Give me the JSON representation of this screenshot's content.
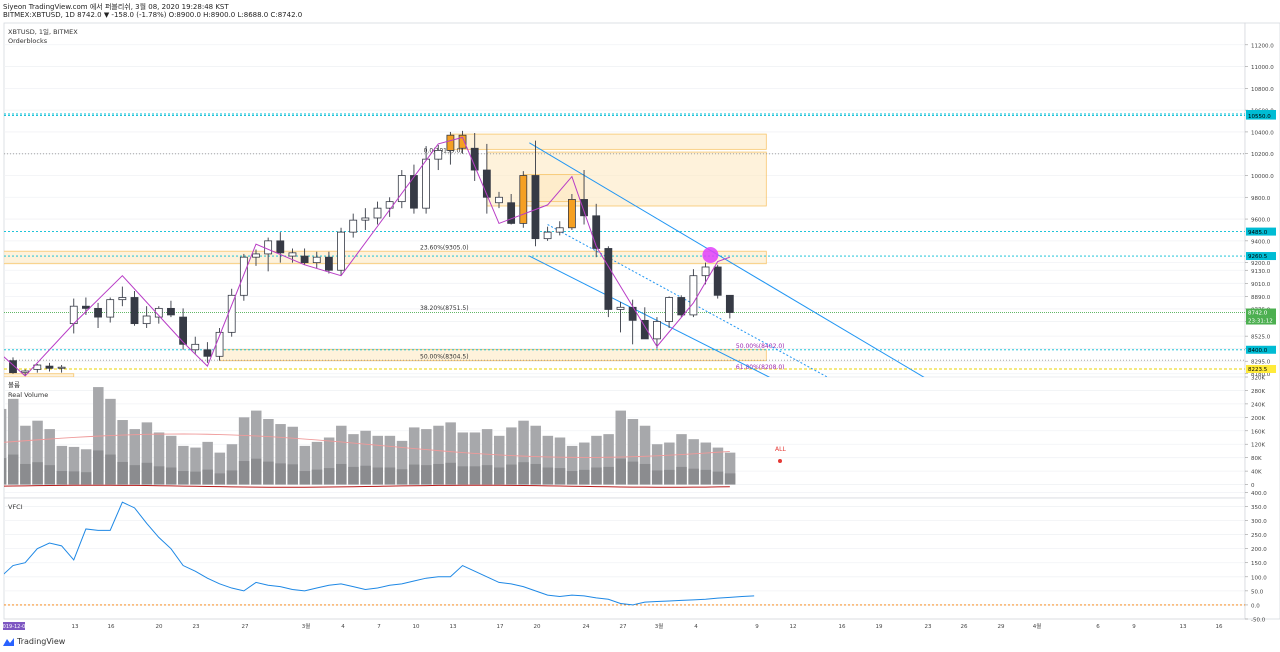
{
  "header": {
    "line1": "Siyeon TradingView.com 에서 퍼블리쉬, 3월 08, 2020 19:28:48 KST",
    "line2": "BITMEX:XBTUSD, 1D 8742.0 ▼ -158.0 (-1.78%) O:8900.0 H:8900.0 L:8688.0 C:8742.0"
  },
  "brand": {
    "name": "TradingView"
  },
  "colors": {
    "up": "#ffffff",
    "down": "#363a45",
    "orange": "#f5a023",
    "ma": "#b83cc6",
    "fib_box": "#f7c56b",
    "channel": "#2196f3",
    "vol": "#a7a8ab"
  },
  "chart_data": [
    {
      "type": "candlestick",
      "title": "XBTUSD, 1일, BITMEX",
      "subtitle": "Orderblocks",
      "ylim": [
        8150,
        11400
      ],
      "y_ticks": [
        "11200.0",
        "11000.0",
        "10800.0",
        "10600.0",
        "10400.0",
        "10200.0",
        "10000.0",
        "9800.0",
        "9600.0",
        "9400.0",
        "9200.0",
        "9130.0",
        "9010.0",
        "8890.0",
        "8775.0",
        "8660.0",
        "8525.0",
        "8410.0",
        "8295.0",
        "8180.0"
      ],
      "price_labels": [
        {
          "text": "10564.5",
          "color": "#00bcd4"
        },
        {
          "text": "10550.0",
          "color": "#00bcd4"
        },
        {
          "text": "9485.0",
          "color": "#00bcd4"
        },
        {
          "text": "9260.5",
          "color": "#00bcd4"
        },
        {
          "text": "8742.0",
          "color": "#4caf50",
          "sub": "23:31:12"
        },
        {
          "text": "8400.0",
          "color": "#00bcd4"
        },
        {
          "text": "8223.5",
          "color": "#ffeb3b"
        }
      ],
      "fib_labels": [
        {
          "text": "0.0(10199.0)",
          "price": 10199
        },
        {
          "text": "23.60%(9305.0)",
          "price": 9305
        },
        {
          "text": "38.20%(8751.5)",
          "price": 8751.5
        },
        {
          "text": "50.00%(8304.5)",
          "price": 8304.5
        },
        {
          "text": "50.00%(8402.0)",
          "price": 8402
        },
        {
          "text": "61.80%(8208.0)",
          "price": 8208
        }
      ],
      "candles": [
        [
          8300,
          8330,
          8180,
          8190,
          "dn"
        ],
        [
          8190,
          8220,
          8160,
          8205,
          "up"
        ],
        [
          8220,
          8270,
          8190,
          8260,
          "up"
        ],
        [
          8250,
          8280,
          8200,
          8230,
          "dn"
        ],
        [
          8230,
          8260,
          8190,
          8240,
          "up"
        ],
        [
          8640,
          8870,
          8550,
          8800,
          "up"
        ],
        [
          8800,
          8880,
          8720,
          8780,
          "dn"
        ],
        [
          8780,
          8830,
          8600,
          8700,
          "dn"
        ],
        [
          8700,
          8880,
          8650,
          8860,
          "up"
        ],
        [
          8860,
          8980,
          8800,
          8880,
          "up"
        ],
        [
          8880,
          8940,
          8620,
          8640,
          "dn"
        ],
        [
          8640,
          8800,
          8600,
          8710,
          "up"
        ],
        [
          8700,
          8800,
          8640,
          8780,
          "up"
        ],
        [
          8780,
          8850,
          8700,
          8720,
          "dn"
        ],
        [
          8700,
          8780,
          8400,
          8450,
          "dn"
        ],
        [
          8450,
          8520,
          8360,
          8400,
          "up"
        ],
        [
          8400,
          8470,
          8280,
          8340,
          "dn"
        ],
        [
          8340,
          8600,
          8300,
          8560,
          "up"
        ],
        [
          8560,
          8960,
          8520,
          8900,
          "up"
        ],
        [
          8900,
          9280,
          8850,
          9250,
          "up"
        ],
        [
          9250,
          9320,
          9170,
          9280,
          "up"
        ],
        [
          9280,
          9430,
          9120,
          9400,
          "up"
        ],
        [
          9400,
          9480,
          9200,
          9290,
          "dn"
        ],
        [
          9290,
          9330,
          9200,
          9260,
          "up"
        ],
        [
          9260,
          9330,
          9180,
          9200,
          "dn"
        ],
        [
          9200,
          9300,
          9150,
          9250,
          "up"
        ],
        [
          9250,
          9300,
          9100,
          9130,
          "dn"
        ],
        [
          9130,
          9520,
          9080,
          9480,
          "up"
        ],
        [
          9480,
          9650,
          9430,
          9590,
          "up"
        ],
        [
          9590,
          9700,
          9500,
          9610,
          "up"
        ],
        [
          9610,
          9760,
          9550,
          9700,
          "up"
        ],
        [
          9700,
          9800,
          9620,
          9760,
          "up"
        ],
        [
          9760,
          10050,
          9700,
          10000,
          "up"
        ],
        [
          10000,
          10100,
          9650,
          9700,
          "dn"
        ],
        [
          9700,
          10270,
          9650,
          10150,
          "up"
        ],
        [
          10150,
          10280,
          10050,
          10230,
          "up"
        ],
        [
          10230,
          10400,
          10100,
          10370,
          "orange"
        ],
        [
          10370,
          10410,
          10200,
          10250,
          "orange"
        ],
        [
          10250,
          10390,
          9950,
          10050,
          "dn"
        ],
        [
          10050,
          10290,
          9650,
          9800,
          "dn"
        ],
        [
          9800,
          9850,
          9700,
          9750,
          "up"
        ],
        [
          9750,
          9830,
          9550,
          9560,
          "dn"
        ],
        [
          9560,
          10040,
          9520,
          10000,
          "orange"
        ],
        [
          10000,
          10320,
          9350,
          9420,
          "dn"
        ],
        [
          9420,
          9530,
          9400,
          9480,
          "up"
        ],
        [
          9480,
          9580,
          9450,
          9520,
          "up"
        ],
        [
          9520,
          9830,
          9500,
          9780,
          "orange"
        ],
        [
          9780,
          10050,
          9550,
          9630,
          "dn"
        ],
        [
          9630,
          9740,
          9250,
          9330,
          "dn"
        ],
        [
          9330,
          9350,
          8700,
          8770,
          "dn"
        ],
        [
          8770,
          8840,
          8560,
          8790,
          "up"
        ],
        [
          8790,
          8860,
          8450,
          8670,
          "dn"
        ],
        [
          8670,
          8790,
          8500,
          8500,
          "dn"
        ],
        [
          8500,
          8700,
          8410,
          8660,
          "up"
        ],
        [
          8660,
          8890,
          8600,
          8880,
          "up"
        ],
        [
          8880,
          8900,
          8700,
          8720,
          "dn"
        ],
        [
          8720,
          9140,
          8700,
          9080,
          "up"
        ],
        [
          9080,
          9200,
          9000,
          9160,
          "up"
        ],
        [
          9160,
          9180,
          8870,
          8900,
          "dn"
        ],
        [
          8900,
          8900,
          8688,
          8742,
          "dn"
        ]
      ],
      "zigzag": [
        [
          -2,
          8460
        ],
        [
          1,
          8160
        ],
        [
          5,
          8640
        ],
        [
          9,
          9080
        ],
        [
          14,
          8470
        ],
        [
          16,
          8250
        ],
        [
          20,
          9370
        ],
        [
          24,
          9180
        ],
        [
          27,
          9080
        ],
        [
          35,
          10290
        ],
        [
          37,
          10350
        ],
        [
          40,
          9560
        ],
        [
          44,
          9730
        ],
        [
          46,
          9990
        ],
        [
          48,
          9350
        ],
        [
          53,
          8430
        ],
        [
          56,
          8830
        ],
        [
          58,
          9210
        ],
        [
          59,
          9250
        ]
      ]
    },
    {
      "type": "bar",
      "title": "볼륨",
      "subtitle": "Real Volume",
      "ylim": [
        -40,
        320
      ],
      "y_ticks": [
        "320K",
        "280K",
        "240K",
        "200K",
        "160K",
        "120K",
        "80K",
        "40K",
        "0"
      ],
      "values": [
        225,
        255,
        175,
        190,
        165,
        115,
        112,
        105,
        290,
        255,
        192,
        165,
        185,
        155,
        145,
        115,
        110,
        127,
        95,
        120,
        200,
        220,
        195,
        180,
        172,
        115,
        127,
        140,
        175,
        150,
        160,
        145,
        145,
        130,
        170,
        165,
        175,
        185,
        155,
        155,
        165,
        145,
        170,
        190,
        175,
        145,
        140,
        115,
        125,
        145,
        150,
        220,
        195,
        175,
        120,
        125,
        150,
        135,
        125,
        110,
        95
      ],
      "annotation": "ALL"
    },
    {
      "type": "line",
      "title": "VFCI",
      "ylim": [
        -50,
        380
      ],
      "y_ticks": [
        "400.0",
        "350.0",
        "300.0",
        "250.0",
        "200.0",
        "150.0",
        "100.0",
        "50.0",
        "0.0",
        "-50.0"
      ],
      "values": [
        100,
        140,
        150,
        200,
        220,
        210,
        160,
        270,
        265,
        265,
        365,
        345,
        290,
        240,
        200,
        140,
        120,
        95,
        75,
        60,
        50,
        80,
        70,
        65,
        55,
        50,
        60,
        70,
        75,
        65,
        55,
        60,
        70,
        75,
        85,
        95,
        100,
        100,
        140,
        120,
        100,
        80,
        75,
        65,
        50,
        35,
        30,
        35,
        32,
        25,
        20,
        5,
        0,
        10,
        12,
        14,
        16,
        18,
        20,
        24,
        27,
        30,
        32
      ],
      "zero_line": 0
    }
  ],
  "x_axis": {
    "labels": [
      {
        "t": "2019-12-06",
        "highlight": true
      },
      {
        "t": "13"
      },
      {
        "t": "16"
      },
      {
        "t": "20"
      },
      {
        "t": "23"
      },
      {
        "t": "27"
      },
      {
        "t": "3월"
      },
      {
        "t": "4"
      },
      {
        "t": "7"
      },
      {
        "t": "10"
      },
      {
        "t": "13"
      },
      {
        "t": "17"
      },
      {
        "t": "20"
      },
      {
        "t": "24"
      },
      {
        "t": "27"
      },
      {
        "t": "3월"
      },
      {
        "t": "4"
      },
      {
        "t": "9"
      },
      {
        "t": "12"
      },
      {
        "t": "16"
      },
      {
        "t": "19"
      },
      {
        "t": "23"
      },
      {
        "t": "26"
      },
      {
        "t": "29"
      },
      {
        "t": "4월"
      },
      {
        "t": "6"
      },
      {
        "t": "9"
      },
      {
        "t": "13"
      },
      {
        "t": "16"
      }
    ]
  }
}
